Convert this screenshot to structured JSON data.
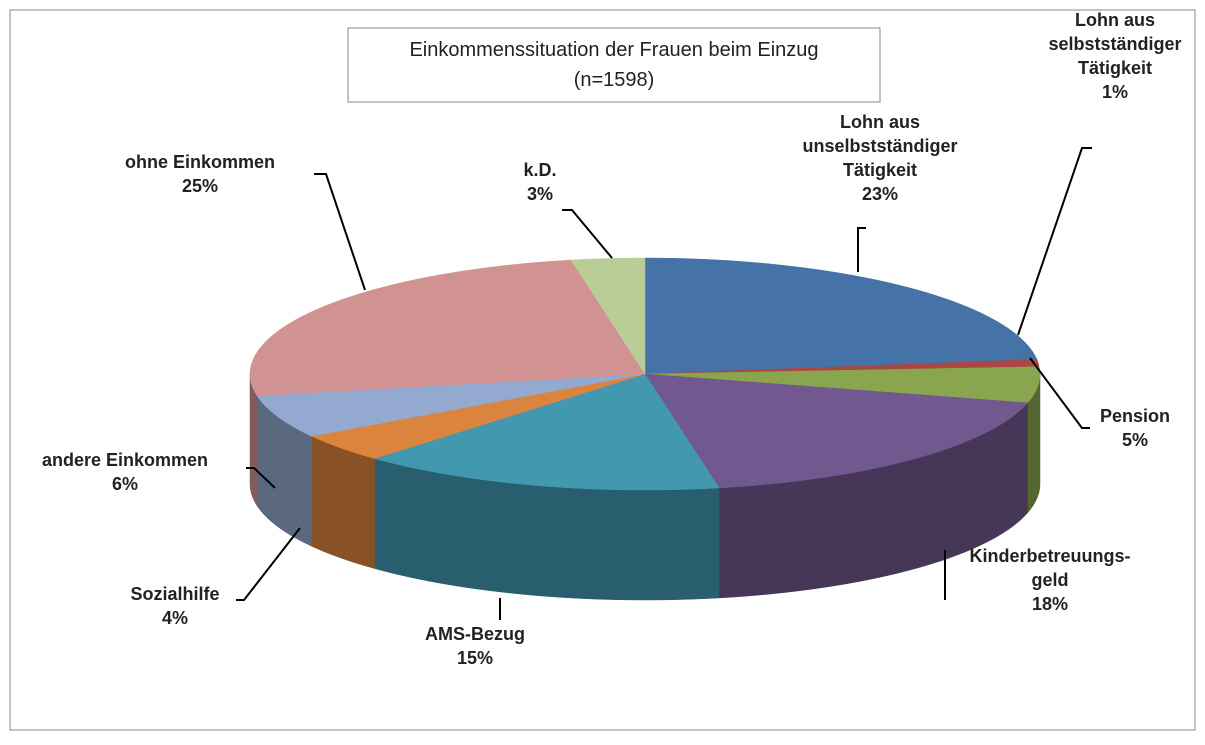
{
  "chart_data": {
    "type": "pie3d",
    "title": "Einkommenssituation der Frauen beim Einzug",
    "subtitle": "(n=1598)",
    "categories": [
      "Lohn aus\nunselbstständiger\nTätigkeit",
      "Lohn aus\nselbstständiger\nTätigkeit",
      "Pension",
      "Kinderbetreuungs-\ngeld",
      "AMS-Bezug",
      "Sozialhilfe",
      "andere Einkommen",
      "ohne Einkommen",
      "k.D."
    ],
    "values": [
      23,
      1,
      5,
      18,
      15,
      4,
      6,
      25,
      3
    ],
    "value_labels": [
      "23%",
      "1%",
      "5%",
      "18%",
      "15%",
      "4%",
      "6%",
      "25%",
      "3%"
    ],
    "colors": [
      "#4572a7",
      "#aa4643",
      "#89a54e",
      "#71588f",
      "#4198af",
      "#db843d",
      "#93a9cf",
      "#d19392",
      "#b9cd96"
    ]
  }
}
